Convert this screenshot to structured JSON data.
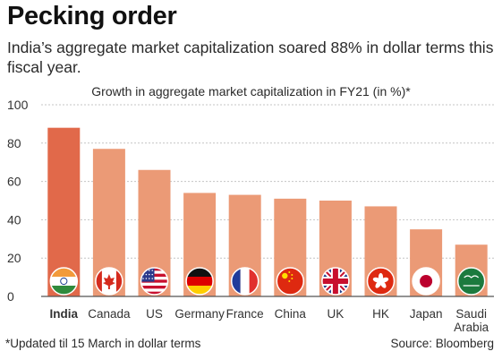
{
  "header": {
    "headline": "Pecking order",
    "deck": "India’s aggregate market capitalization soared 88% in dollar terms this fiscal year."
  },
  "footer": {
    "footnote": "*Updated til 15 March in dollar terms",
    "source": "Source: Bloomberg"
  },
  "chart_data": {
    "type": "bar",
    "title": "Growth in aggregate market capitalization in FY21 (in %)*",
    "xlabel": "",
    "ylabel": "",
    "ylim": [
      0,
      100
    ],
    "yticks": [
      0,
      20,
      40,
      60,
      80,
      100
    ],
    "grid": true,
    "categories": [
      "India",
      "Canada",
      "US",
      "Germany",
      "France",
      "China",
      "UK",
      "HK",
      "Japan",
      "Saudi Arabia"
    ],
    "category_lines": [
      [
        "India"
      ],
      [
        "Canada"
      ],
      [
        "US"
      ],
      [
        "Germany"
      ],
      [
        "France"
      ],
      [
        "China"
      ],
      [
        "UK"
      ],
      [
        "HK"
      ],
      [
        "Japan"
      ],
      [
        "Saudi",
        "Arabia"
      ]
    ],
    "values": [
      88,
      77,
      66,
      54,
      53,
      51,
      50,
      47,
      35,
      27
    ],
    "highlight_index": 0,
    "flag_icons": [
      "india-flag-icon",
      "canada-flag-icon",
      "us-flag-icon",
      "germany-flag-icon",
      "france-flag-icon",
      "china-flag-icon",
      "uk-flag-icon",
      "hk-flag-icon",
      "japan-flag-icon",
      "saudi-arabia-flag-icon"
    ],
    "colors": {
      "highlight": "#e1694a",
      "bar": "#eb9a76",
      "grid": "#c4c4c4",
      "axis": "#555555"
    }
  }
}
